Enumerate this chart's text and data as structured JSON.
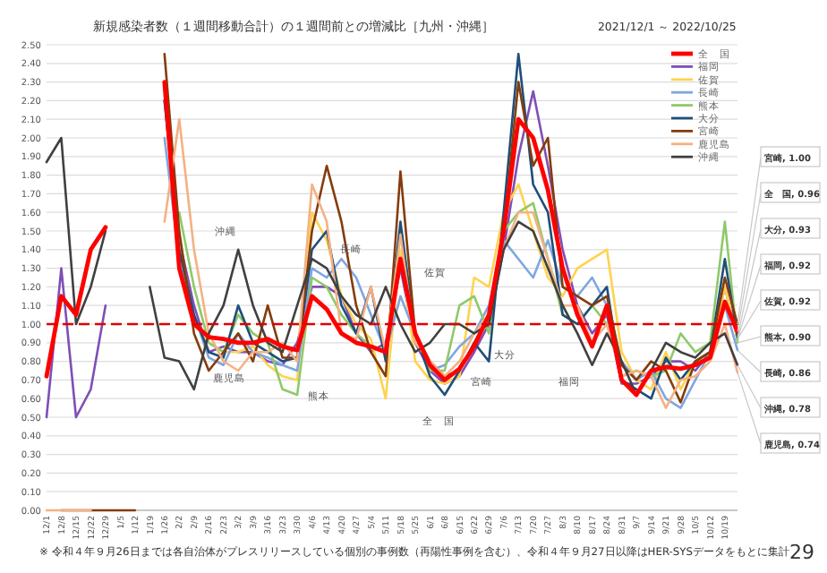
{
  "chart_data": {
    "type": "line",
    "title": "新規感染者数（１週間移動合計）の１週間前との増減比［九州・沖縄］",
    "subtitle": "2021/12/1 ～ 2022/10/25",
    "x": [
      "2021-12-01",
      "2021-12-08",
      "2021-12-15",
      "2021-12-22",
      "2021-12-29",
      "2022-01-05",
      "2022-01-12",
      "2022-01-19",
      "2022-01-26",
      "2022-02-02",
      "2022-02-09",
      "2022-02-16",
      "2022-02-23",
      "2022-03-02",
      "2022-03-09",
      "2022-03-16",
      "2022-03-23",
      "2022-03-30",
      "2022-04-06",
      "2022-04-13",
      "2022-04-20",
      "2022-04-27",
      "2022-05-04",
      "2022-05-11",
      "2022-05-18",
      "2022-05-25",
      "2022-06-01",
      "2022-06-08",
      "2022-06-15",
      "2022-06-22",
      "2022-06-29",
      "2022-07-06",
      "2022-07-13",
      "2022-07-20",
      "2022-07-27",
      "2022-08-03",
      "2022-08-10",
      "2022-08-17",
      "2022-08-24",
      "2022-08-31",
      "2022-09-07",
      "2022-09-14",
      "2022-09-21",
      "2022-09-28",
      "2022-10-05",
      "2022-10-12",
      "2022-10-19",
      "2022-10-25"
    ],
    "xlim": [
      "2021-12-01",
      "2022-10-25"
    ],
    "ylim": [
      0,
      2.5
    ],
    "yticks": [
      {
        "value": 0,
        "label": "0.00"
      },
      {
        "value": 0.1,
        "label": "0.10"
      },
      {
        "value": 0.2,
        "label": "0.20"
      },
      {
        "value": 0.3,
        "label": "0.30"
      },
      {
        "value": 0.4,
        "label": "0.40"
      },
      {
        "value": 0.5,
        "label": "0.50"
      },
      {
        "value": 0.6,
        "label": "0.60"
      },
      {
        "value": 0.7,
        "label": "0.70"
      },
      {
        "value": 0.8,
        "label": "0.80"
      },
      {
        "value": 0.9,
        "label": "0.90"
      },
      {
        "value": 1,
        "label": "1.00"
      },
      {
        "value": 1.1,
        "label": "1.10"
      },
      {
        "value": 1.2,
        "label": "1.20"
      },
      {
        "value": 1.3,
        "label": "1.30"
      },
      {
        "value": 1.4,
        "label": "1.40"
      },
      {
        "value": 1.5,
        "label": "1.50"
      },
      {
        "value": 1.6,
        "label": "1.60"
      },
      {
        "value": 1.7,
        "label": "1.70"
      },
      {
        "value": 1.8,
        "label": "1.80"
      },
      {
        "value": 1.9,
        "label": "1.90"
      },
      {
        "value": 2,
        "label": "2.00"
      },
      {
        "value": 2.1,
        "label": "2.10"
      },
      {
        "value": 2.2,
        "label": "2.20"
      },
      {
        "value": 2.3,
        "label": "2.30"
      },
      {
        "value": 2.4,
        "label": "2.40"
      },
      {
        "value": 2.5,
        "label": "2.50"
      }
    ],
    "xticks": [
      {
        "value": "2021-12-01",
        "label": "12/1"
      },
      {
        "value": "2021-12-08",
        "label": "12/8"
      },
      {
        "value": "2021-12-15",
        "label": "12/15"
      },
      {
        "value": "2021-12-22",
        "label": "12/22"
      },
      {
        "value": "2021-12-29",
        "label": "12/29"
      },
      {
        "value": "2022-01-05",
        "label": "1/5"
      },
      {
        "value": "2022-01-12",
        "label": "1/12"
      },
      {
        "value": "2022-01-19",
        "label": "1/19"
      },
      {
        "value": "2022-01-26",
        "label": "1/26"
      },
      {
        "value": "2022-02-02",
        "label": "2/2"
      },
      {
        "value": "2022-02-09",
        "label": "2/9"
      },
      {
        "value": "2022-02-16",
        "label": "2/16"
      },
      {
        "value": "2022-02-23",
        "label": "2/23"
      },
      {
        "value": "2022-03-02",
        "label": "3/2"
      },
      {
        "value": "2022-03-09",
        "label": "3/9"
      },
      {
        "value": "2022-03-16",
        "label": "3/16"
      },
      {
        "value": "2022-03-23",
        "label": "3/23"
      },
      {
        "value": "2022-03-30",
        "label": "3/30"
      },
      {
        "value": "2022-04-06",
        "label": "4/6"
      },
      {
        "value": "2022-04-13",
        "label": "4/13"
      },
      {
        "value": "2022-04-20",
        "label": "4/20"
      },
      {
        "value": "2022-04-27",
        "label": "4/27"
      },
      {
        "value": "2022-05-04",
        "label": "5/4"
      },
      {
        "value": "2022-05-11",
        "label": "5/11"
      },
      {
        "value": "2022-05-18",
        "label": "5/18"
      },
      {
        "value": "2022-05-25",
        "label": "5/25"
      },
      {
        "value": "2022-06-01",
        "label": "6/1"
      },
      {
        "value": "2022-06-08",
        "label": "6/8"
      },
      {
        "value": "2022-06-15",
        "label": "6/15"
      },
      {
        "value": "2022-06-22",
        "label": "6/22"
      },
      {
        "value": "2022-06-29",
        "label": "6/29"
      },
      {
        "value": "2022-07-06",
        "label": "7/6"
      },
      {
        "value": "2022-07-13",
        "label": "7/13"
      },
      {
        "value": "2022-07-20",
        "label": "7/20"
      },
      {
        "value": "2022-07-27",
        "label": "7/27"
      },
      {
        "value": "2022-08-03",
        "label": "8/3"
      },
      {
        "value": "2022-08-10",
        "label": "8/10"
      },
      {
        "value": "2022-08-17",
        "label": "8/17"
      },
      {
        "value": "2022-08-24",
        "label": "8/24"
      },
      {
        "value": "2022-08-31",
        "label": "8/31"
      },
      {
        "value": "2022-09-07",
        "label": "9/7"
      },
      {
        "value": "2022-09-14",
        "label": "9/14"
      },
      {
        "value": "2022-09-21",
        "label": "9/21"
      },
      {
        "value": "2022-09-28",
        "label": "9/28"
      },
      {
        "value": "2022-10-05",
        "label": "10/5"
      },
      {
        "value": "2022-10-12",
        "label": "10/12"
      },
      {
        "value": "2022-10-19",
        "label": "10/19"
      }
    ],
    "grid": "y",
    "legend": "top right",
    "ref_lines": [
      {
        "axis": "y",
        "value": 1,
        "color": "#e00000",
        "line_style": "dashed"
      }
    ],
    "series": [
      {
        "name": "全　国",
        "color": "#ff0000",
        "values": [
          0.72,
          1.15,
          1.05,
          1.4,
          1.52,
          null,
          null,
          null,
          2.3,
          1.3,
          1.0,
          0.93,
          0.92,
          0.9,
          0.9,
          0.92,
          0.88,
          0.86,
          1.15,
          1.08,
          0.95,
          0.9,
          0.88,
          0.85,
          1.35,
          0.95,
          0.78,
          0.7,
          0.76,
          0.88,
          1.05,
          1.5,
          2.1,
          2.0,
          1.72,
          1.3,
          1.05,
          0.88,
          1.1,
          0.7,
          0.62,
          0.75,
          0.77,
          0.76,
          0.78,
          0.82,
          1.12,
          0.96
        ]
      },
      {
        "name": "福岡",
        "color": "#7f4fb5",
        "values": [
          0.5,
          1.3,
          0.5,
          0.65,
          1.1,
          null,
          null,
          null,
          2.2,
          1.45,
          1.1,
          0.85,
          0.88,
          0.85,
          0.85,
          0.8,
          0.78,
          0.9,
          1.2,
          1.2,
          1.15,
          0.95,
          0.85,
          0.9,
          1.3,
          0.9,
          0.75,
          0.68,
          0.72,
          0.85,
          1.0,
          1.4,
          1.9,
          2.25,
          1.85,
          1.4,
          1.1,
          0.95,
          1.05,
          0.68,
          0.68,
          0.72,
          0.8,
          0.8,
          0.75,
          0.85,
          1.2,
          0.92
        ]
      },
      {
        "name": "佐賀",
        "color": "#ffd34f",
        "values": [
          null,
          null,
          null,
          null,
          null,
          null,
          null,
          null,
          2.3,
          1.45,
          1.0,
          0.9,
          0.85,
          0.85,
          0.88,
          0.78,
          0.72,
          0.7,
          1.6,
          1.45,
          1.15,
          1.0,
          0.92,
          0.6,
          1.4,
          0.8,
          0.7,
          0.68,
          0.72,
          1.25,
          1.2,
          1.6,
          1.75,
          1.5,
          1.25,
          1.15,
          1.3,
          1.35,
          1.4,
          0.85,
          0.7,
          0.65,
          0.85,
          0.65,
          0.8,
          0.85,
          1.2,
          0.92
        ]
      },
      {
        "name": "長崎",
        "color": "#7fa6e0",
        "values": [
          null,
          null,
          null,
          null,
          null,
          null,
          null,
          null,
          2.0,
          1.35,
          1.05,
          0.82,
          0.78,
          0.95,
          0.85,
          0.82,
          0.78,
          0.75,
          1.3,
          1.25,
          1.35,
          1.25,
          1.05,
          0.85,
          1.15,
          0.95,
          0.75,
          0.78,
          0.88,
          0.95,
          1.1,
          1.45,
          1.35,
          1.25,
          1.45,
          1.2,
          1.15,
          1.25,
          1.1,
          0.8,
          0.7,
          0.75,
          0.6,
          0.55,
          0.7,
          0.85,
          1.1,
          0.86
        ]
      },
      {
        "name": "熊本",
        "color": "#8fc96a",
        "values": [
          null,
          null,
          null,
          null,
          null,
          null,
          null,
          null,
          null,
          1.6,
          1.2,
          0.9,
          0.85,
          1.05,
          0.95,
          0.9,
          0.65,
          0.62,
          1.25,
          1.2,
          1.05,
          0.95,
          0.88,
          0.85,
          1.5,
          0.95,
          0.75,
          0.75,
          1.1,
          1.15,
          0.95,
          1.5,
          1.6,
          1.65,
          1.35,
          1.05,
          1.0,
          1.1,
          1.0,
          0.72,
          0.75,
          0.72,
          0.75,
          0.95,
          0.85,
          0.9,
          1.55,
          0.9
        ]
      },
      {
        "name": "大分",
        "color": "#1f4e79",
        "values": [
          null,
          null,
          null,
          null,
          null,
          null,
          null,
          null,
          2.2,
          1.4,
          1.05,
          0.85,
          0.82,
          1.1,
          0.9,
          0.85,
          0.8,
          0.82,
          1.4,
          1.5,
          1.1,
          0.95,
          1.2,
          0.8,
          1.55,
          0.95,
          0.72,
          0.62,
          0.75,
          0.9,
          0.8,
          1.6,
          2.45,
          1.75,
          1.6,
          1.05,
          1.0,
          1.1,
          1.2,
          0.7,
          0.65,
          0.6,
          0.82,
          0.7,
          0.8,
          0.85,
          1.35,
          0.93
        ]
      },
      {
        "name": "宮崎",
        "color": "#843c0c",
        "values": [
          null,
          0,
          0,
          0,
          0,
          0,
          0,
          null,
          2.45,
          1.5,
          0.95,
          0.75,
          0.85,
          0.95,
          0.8,
          1.1,
          0.82,
          0.82,
          1.5,
          1.85,
          1.55,
          1.1,
          0.85,
          0.72,
          1.82,
          0.95,
          0.8,
          0.72,
          0.75,
          0.9,
          1.05,
          1.5,
          2.3,
          1.85,
          2.0,
          1.2,
          1.15,
          1.1,
          1.15,
          0.78,
          0.7,
          0.8,
          0.75,
          0.58,
          0.8,
          0.85,
          1.25,
          1.0
        ]
      },
      {
        "name": "鹿児島",
        "color": "#f4b183",
        "values": [
          0,
          0,
          0,
          0,
          null,
          null,
          null,
          null,
          1.55,
          2.1,
          1.4,
          0.95,
          0.8,
          0.75,
          0.85,
          0.85,
          0.9,
          0.8,
          1.75,
          1.55,
          0.95,
          0.92,
          1.2,
          0.85,
          1.48,
          0.9,
          0.8,
          0.72,
          0.8,
          0.95,
          1.05,
          1.4,
          1.6,
          1.6,
          1.35,
          1.1,
          1.1,
          0.9,
          1.0,
          0.72,
          0.75,
          0.72,
          0.55,
          0.7,
          0.72,
          0.8,
          1.0,
          0.74
        ]
      },
      {
        "name": "沖縄",
        "color": "#404040",
        "values": [
          1.87,
          2.0,
          1.0,
          1.2,
          1.5,
          null,
          null,
          1.2,
          0.82,
          0.8,
          0.65,
          0.95,
          1.1,
          1.4,
          1.1,
          0.9,
          0.85,
          1.1,
          1.35,
          1.3,
          1.15,
          1.05,
          1.0,
          1.2,
          1.0,
          0.85,
          0.9,
          1.0,
          1.0,
          0.95,
          1.0,
          1.4,
          1.55,
          1.5,
          1.3,
          1.1,
          0.95,
          0.78,
          0.95,
          0.8,
          0.62,
          0.75,
          0.9,
          0.85,
          0.82,
          0.9,
          0.95,
          0.78
        ]
      }
    ],
    "annotations": [
      "※ 令和４年９月26日までは各自治体がプレスリリースしている個別の事例数（再陽性事例を含む）、令和４年９月27日以降はHER-SYSデータをもとに集計",
      "29",
      "沖縄",
      "長崎",
      "鹿児島",
      "熊本",
      "全　国",
      "佐賀",
      "大分",
      "宮崎",
      "福岡",
      {
        "text": "宮崎, 1.00",
        "x": "2022-10-25",
        "y": 1.0
      },
      {
        "text": "全　国, 0.96",
        "x": "2022-10-25",
        "y": 0.96
      },
      {
        "text": "大分, 0.93",
        "x": "2022-10-25",
        "y": 0.93
      },
      {
        "text": "福岡, 0.92",
        "x": "2022-10-25",
        "y": 0.92
      },
      {
        "text": "佐賀, 0.92",
        "x": "2022-10-25",
        "y": 0.92
      },
      {
        "text": "熊本, 0.90",
        "x": "2022-10-25",
        "y": 0.9
      },
      {
        "text": "長崎, 0.86",
        "x": "2022-10-25",
        "y": 0.86
      },
      {
        "text": "沖縄, 0.78",
        "x": "2022-10-25",
        "y": 0.78
      },
      {
        "text": "鹿児島, 0.74",
        "x": "2022-10-25",
        "y": 0.74
      }
    ]
  }
}
